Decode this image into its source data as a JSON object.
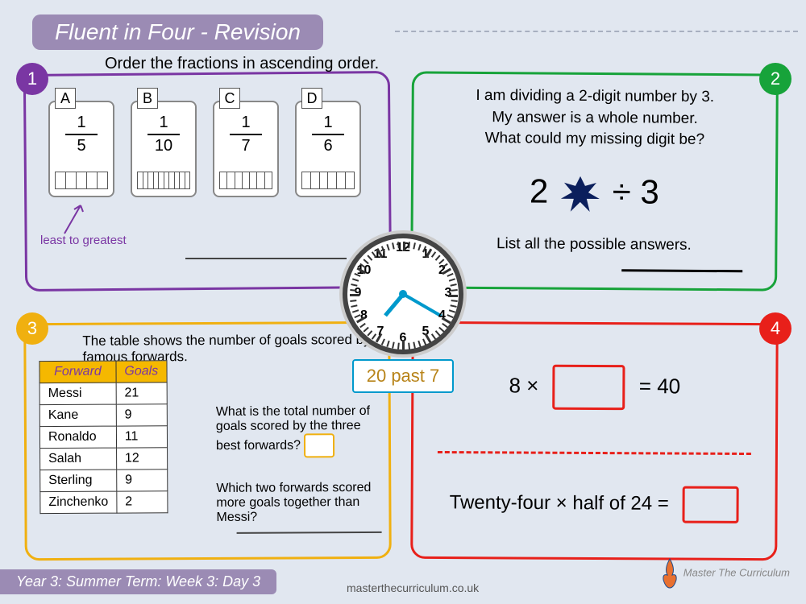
{
  "title": "Fluent in Four - Revision",
  "colors": {
    "bg": "#e1e7f0",
    "purple": "#7a36a3",
    "green": "#17a33a",
    "amber": "#f0b010",
    "red": "#e8201a",
    "lav": "#9b8bb4",
    "blue": "#0099cc"
  },
  "q1": {
    "badge": "1",
    "prompt": "Order the fractions in ascending order.",
    "cards": [
      {
        "letter": "A",
        "num": "1",
        "den": "5",
        "cells": 5
      },
      {
        "letter": "B",
        "num": "1",
        "den": "10",
        "cells": 10
      },
      {
        "letter": "C",
        "num": "1",
        "den": "7",
        "cells": 7
      },
      {
        "letter": "D",
        "num": "1",
        "den": "6",
        "cells": 6
      }
    ],
    "note": "least to greatest"
  },
  "q2": {
    "badge": "2",
    "line1": "I am dividing a 2-digit number by 3.",
    "line2": "My answer is a whole number.",
    "line3": "What could my missing digit be?",
    "eq_left": "2",
    "eq_right": "÷ 3",
    "list": "List all the possible answers."
  },
  "q3": {
    "badge": "3",
    "prompt": "The table shows the number of goals scored by famous forwards.",
    "headers": [
      "Forward",
      "Goals"
    ],
    "rows": [
      [
        "Messi",
        "21"
      ],
      [
        "Kane",
        "9"
      ],
      [
        "Ronaldo",
        "11"
      ],
      [
        "Salah",
        "12"
      ],
      [
        "Sterling",
        "9"
      ],
      [
        "Zinchenko",
        "2"
      ]
    ],
    "sub1": "What is the total number of goals scored by the three best forwards?",
    "sub2": "Which two forwards scored more goals together than Messi?"
  },
  "q4": {
    "badge": "4",
    "eq1_left": "8 ×",
    "eq1_right": "= 40",
    "eq2": "Twenty-four × half of 24 ="
  },
  "clock": {
    "label": "20 past 7",
    "hour_angle": 220,
    "minute_angle": 120
  },
  "footer": {
    "term": "Year 3: Summer Term: Week 3: Day 3",
    "url": "masterthecurriculum.co.uk",
    "brand": "Master The Curriculum"
  }
}
